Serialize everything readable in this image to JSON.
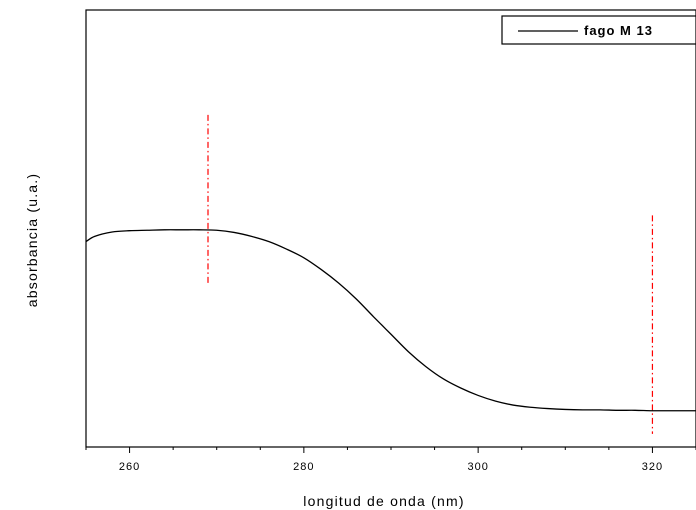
{
  "chart_data": {
    "type": "line",
    "title": "",
    "xlabel": "longitud de onda (nm)",
    "ylabel": "absorbancia (u.a.)",
    "xlim": [
      255,
      325
    ],
    "ylim": [
      0,
      1
    ],
    "xticks": [
      260,
      280,
      300,
      320
    ],
    "grid": false,
    "legend_position": "top-right",
    "series": [
      {
        "name": "fago M 13",
        "color": "#000000",
        "x": [
          255,
          256,
          258,
          260,
          262,
          264,
          266,
          268,
          270,
          272,
          274,
          276,
          278,
          280,
          282,
          284,
          286,
          288,
          290,
          292,
          294,
          296,
          298,
          300,
          302,
          304,
          306,
          308,
          310,
          312,
          314,
          316,
          318,
          320,
          322,
          325
        ],
        "y": [
          0.47,
          0.482,
          0.492,
          0.495,
          0.496,
          0.497,
          0.497,
          0.497,
          0.496,
          0.491,
          0.482,
          0.47,
          0.453,
          0.433,
          0.406,
          0.375,
          0.339,
          0.298,
          0.258,
          0.218,
          0.184,
          0.156,
          0.135,
          0.118,
          0.105,
          0.096,
          0.091,
          0.088,
          0.086,
          0.085,
          0.085,
          0.084,
          0.084,
          0.083,
          0.083,
          0.083
        ]
      }
    ],
    "markers": [
      {
        "x": 269,
        "y_from": 0.37,
        "y_to": 0.76,
        "color": "#ff0000",
        "style": "dash-dot"
      },
      {
        "x": 320,
        "y_from": 0.03,
        "y_to": 0.53,
        "color": "#ff0000",
        "style": "dash-dot"
      }
    ]
  }
}
